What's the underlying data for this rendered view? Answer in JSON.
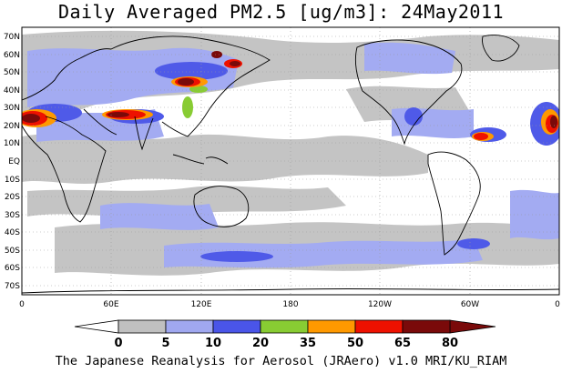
{
  "title": "Daily Averaged PM2.5 [ug/m3]: 24May2011",
  "footer": "The Japanese Reanalysis for Aerosol (JRAero) v1.0 MRI/KU_RIAM",
  "lat_ticks": [
    "70N",
    "60N",
    "50N",
    "40N",
    "30N",
    "20N",
    "10N",
    "EQ",
    "10S",
    "20S",
    "30S",
    "40S",
    "50S",
    "60S",
    "70S"
  ],
  "lon_ticks": [
    "0",
    "60E",
    "120E",
    "180",
    "120W",
    "60W",
    "0"
  ],
  "colorbar": {
    "labels": [
      "0",
      "5",
      "10",
      "20",
      "35",
      "50",
      "65",
      "80"
    ],
    "colors": [
      "#ffffff",
      "#c0c0c0",
      "#a0a8f0",
      "#4a55e8",
      "#88cc33",
      "#ff9900",
      "#ee1100",
      "#7a0a0a"
    ]
  },
  "map": {
    "projection": "equirectangular",
    "lon_range": [
      0,
      360
    ],
    "lat_range": [
      -75,
      75
    ],
    "grid": "dotted"
  }
}
